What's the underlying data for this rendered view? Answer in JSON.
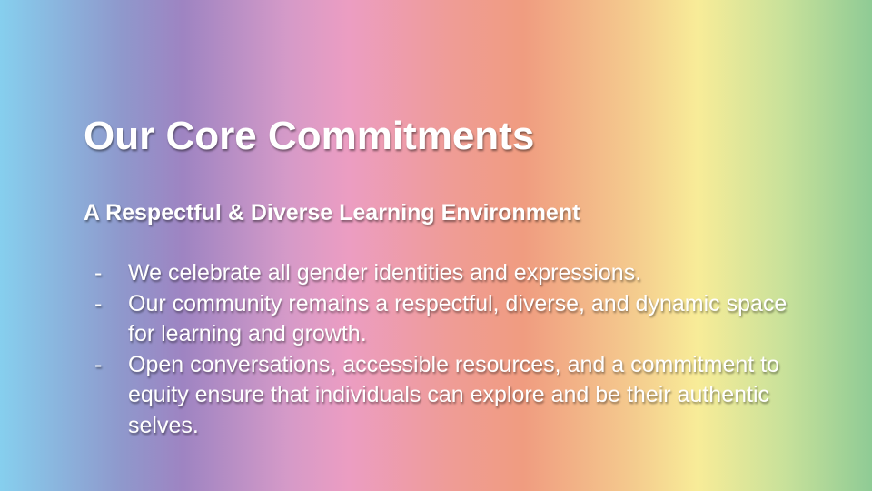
{
  "slide": {
    "title": "Our Core Commitments",
    "subtitle": "A Respectful & Diverse Learning Environment",
    "bullet_marker": "-",
    "bullets": [
      "We celebrate all gender identities and expressions.",
      "Our community remains a respectful, diverse, and dynamic space for learning and growth.",
      "Open conversations, accessible resources, and a commitment to equity ensure that individuals can explore and be their authentic selves."
    ],
    "colors": {
      "text": "#ffffff",
      "gradient_stops": [
        "#86cfee",
        "#9e84c2",
        "#ec9dc2",
        "#f09c80",
        "#f8ec98",
        "#8fcb95"
      ]
    }
  }
}
